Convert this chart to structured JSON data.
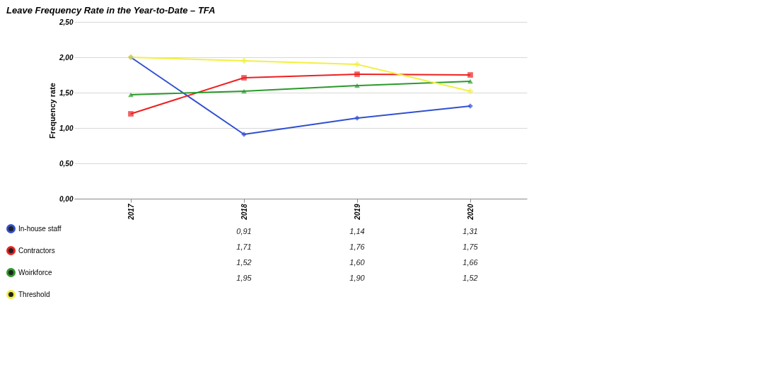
{
  "chart_data": {
    "type": "line",
    "title": "Leave Frequency Rate in the Year-to-Date – TFA",
    "ylabel": "Frequency rate",
    "categories": [
      "2017",
      "2018",
      "2019",
      "2020"
    ],
    "series": [
      {
        "name": "In-house staff",
        "color": "#3050d0",
        "marker": "diamond",
        "values": [
          2.0,
          0.91,
          1.14,
          1.31
        ],
        "value_labels": [
          null,
          "0,91",
          "1,14",
          "1,31"
        ]
      },
      {
        "name": "Contractors",
        "color": "#ee2020",
        "marker": "square",
        "values": [
          1.2,
          1.71,
          1.76,
          1.75
        ],
        "value_labels": [
          null,
          "1,71",
          "1,76",
          "1,75"
        ]
      },
      {
        "name": "Woirkforce",
        "color": "#2a9a2a",
        "marker": "triangle",
        "values": [
          1.47,
          1.52,
          1.6,
          1.66
        ],
        "value_labels": [
          null,
          "1,52",
          "1,60",
          "1,66"
        ]
      },
      {
        "name": "Threshold",
        "color": "#f2f040",
        "marker": "cross",
        "values": [
          2.0,
          1.95,
          1.9,
          1.52
        ],
        "value_labels": [
          null,
          "1,95",
          "1,90",
          "1,52"
        ]
      }
    ],
    "ylim": [
      0,
      2.5
    ],
    "yticks": [
      {
        "value": 0,
        "label": "0,00"
      },
      {
        "value": 0.5,
        "label": "0,50"
      },
      {
        "value": 1,
        "label": "1,00"
      },
      {
        "value": 1.5,
        "label": "1,50"
      },
      {
        "value": 2,
        "label": "2,00"
      },
      {
        "value": 2.5,
        "label": "2,50"
      }
    ],
    "grid": "y",
    "legend": "left",
    "line_style": "solid"
  }
}
